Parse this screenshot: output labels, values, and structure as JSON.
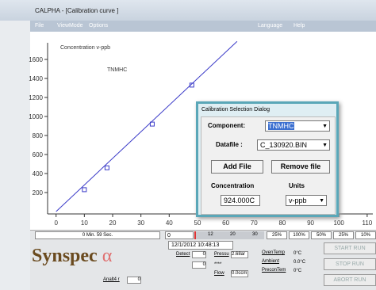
{
  "window": {
    "title": "CALPHA - [Calibration curve ]"
  },
  "menu": {
    "left": [
      "File",
      "ViewMode",
      "Options"
    ],
    "right": [
      "Language",
      "Help"
    ]
  },
  "chart_data": {
    "type": "scatter",
    "title": "Concentration v-ppb",
    "annotation": "TNMHC",
    "x": [
      10,
      18,
      34,
      48
    ],
    "values": [
      230,
      460,
      920,
      1330
    ],
    "color": "#3a3ac8",
    "line": {
      "x": [
        0,
        64
      ],
      "values": [
        0,
        1790
      ]
    },
    "xlim": [
      -3,
      112
    ],
    "ylim": [
      -25,
      1725
    ],
    "xticks": [
      0,
      10,
      20,
      30,
      40,
      50,
      60,
      70,
      80,
      90,
      100,
      110
    ],
    "yticks": [
      200,
      400,
      600,
      800,
      1000,
      1200,
      1400,
      1600
    ]
  },
  "dialog": {
    "title": "Calibration Selection Dialog",
    "component_label": "Component:",
    "component": "TNMHC",
    "datafile_label": "Datafile :",
    "datafile": "C_130920.BIN",
    "add_button": "Add File",
    "remove_button": "Remove file",
    "concentration_label": "Concentration",
    "units_label": "Units",
    "concentration": "924.000C",
    "units": "v-ppb"
  },
  "status": {
    "elapsed": "0 Min. 59 Sec.",
    "counter": "0",
    "progress_ticks": [
      "12",
      "20",
      "30"
    ],
    "percent_buttons": [
      "25%",
      "100%",
      "50%",
      "25%",
      "10%"
    ],
    "datetime": "12/1/2012   10:48:13",
    "logo": "Synspec",
    "logo_symbol": "α",
    "detect_label": "Detect",
    "detect": "0",
    "pressure_label": "Pressu",
    "pressure": "2.68ar",
    "flow_label": "Flow",
    "flow": "0.0ccm",
    "blank_value": "0",
    "stars": "****",
    "oven_label": "OvenTemp",
    "oven": "0°C",
    "ambient_label": "Ambient",
    "ambient": "0.0°C",
    "precon_label": "PreconTem",
    "precon": "0°C",
    "analog_label": "Analt4 r",
    "analog": "0",
    "start": "START RUN",
    "stop": "STOP RUN",
    "abort": "ABORT RUN"
  }
}
